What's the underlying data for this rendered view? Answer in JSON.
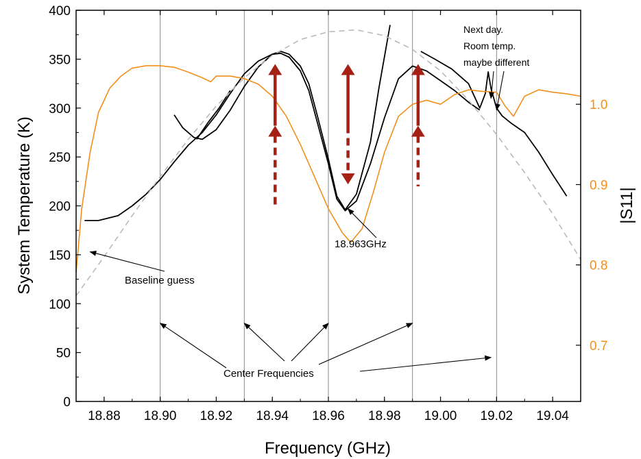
{
  "chart_data": {
    "type": "line",
    "xlabel": "Frequency (GHz)",
    "ylabel": "System Temperature (K)",
    "y2label": "|S11|",
    "xlim": [
      18.87,
      19.05
    ],
    "ylim": [
      0,
      400
    ],
    "y2lim": [
      0.63,
      1.117
    ],
    "x_ticks": [
      18.88,
      18.9,
      18.92,
      18.94,
      18.96,
      18.98,
      19.0,
      19.02,
      19.04
    ],
    "x_tick_labels": [
      "18.88",
      "18.90",
      "18.92",
      "18.94",
      "18.96",
      "18.98",
      "19.00",
      "19.02",
      "19.04"
    ],
    "y_ticks": [
      0,
      50,
      100,
      150,
      200,
      250,
      300,
      350,
      400
    ],
    "y_tick_labels": [
      "0",
      "50",
      "100",
      "150",
      "200",
      "250",
      "300",
      "350",
      "400"
    ],
    "y2_ticks": [
      0.7,
      0.8,
      0.9,
      1.0
    ],
    "y2_tick_labels": [
      "0.7",
      "0.8",
      "0.9",
      "1.0"
    ],
    "grid": false,
    "vertical_lines": [
      18.9,
      18.93,
      18.96,
      18.99,
      19.02
    ],
    "colors": {
      "temperature": "#000000",
      "s11": "#f28e1c",
      "baseline": "#b8b8b8",
      "arrows": "#a52015",
      "vlines": "#888888"
    },
    "series": [
      {
        "axis": "left",
        "style": "solid",
        "color": "#000000",
        "x": [
          18.873,
          18.878,
          18.885,
          18.89,
          18.895,
          18.9,
          18.905,
          18.91,
          18.915,
          18.92,
          18.925,
          18.93,
          18.935,
          18.94,
          18.943,
          18.946,
          18.95,
          18.953,
          18.956,
          18.96,
          18.963,
          18.966,
          18.97,
          18.975,
          18.98,
          18.985,
          18.99,
          18.995,
          19.0,
          19.005,
          19.01,
          19.014
        ],
        "y": [
          185,
          185,
          190,
          200,
          212,
          227,
          245,
          262,
          275,
          293,
          315,
          335,
          348,
          355,
          356,
          352,
          338,
          318,
          286,
          243,
          207,
          195,
          205,
          243,
          290,
          330,
          343,
          338,
          328,
          318,
          306,
          298
        ]
      },
      {
        "axis": "left",
        "style": "solid",
        "color": "#000000",
        "x": [
          18.905,
          18.908,
          18.912,
          18.915,
          18.92,
          18.925,
          18.93,
          18.935,
          18.94,
          18.943,
          18.946,
          18.95,
          18.953,
          18.956,
          18.96,
          18.963,
          18.966,
          18.97,
          18.975,
          18.978,
          18.982
        ],
        "y": [
          293,
          280,
          270,
          268,
          278,
          298,
          322,
          342,
          355,
          358,
          355,
          343,
          325,
          293,
          248,
          210,
          196,
          212,
          265,
          320,
          385
        ]
      },
      {
        "axis": "left",
        "style": "solid",
        "color": "#000000",
        "x": [
          18.913,
          18.917,
          18.921,
          18.925
        ],
        "y": [
          268,
          285,
          300,
          318
        ]
      },
      {
        "axis": "left",
        "style": "solid",
        "color": "#000000",
        "x": [
          18.993,
          18.998,
          19.004,
          19.01,
          19.014,
          19.016,
          19.017,
          19.018,
          19.02,
          19.022,
          19.025,
          19.03,
          19.035,
          19.04,
          19.045
        ],
        "y": [
          358,
          350,
          340,
          325,
          300,
          315,
          337,
          320,
          300,
          292,
          285,
          275,
          255,
          232,
          210
        ]
      },
      {
        "axis": "left",
        "style": "dashed",
        "color": "#b8b8b8",
        "x": [
          18.87,
          18.88,
          18.89,
          18.9,
          18.91,
          18.92,
          18.93,
          18.94,
          18.95,
          18.96,
          18.97,
          18.98,
          18.99,
          19.0,
          19.01,
          19.02,
          19.03,
          19.04,
          19.05
        ],
        "y": [
          108,
          148,
          190,
          230,
          268,
          302,
          331,
          354,
          370,
          378,
          380,
          374,
          360,
          338,
          308,
          273,
          234,
          192,
          145
        ]
      },
      {
        "axis": "right",
        "style": "solid",
        "color": "#f28e1c",
        "x": [
          18.87,
          18.872,
          18.875,
          18.878,
          18.882,
          18.886,
          18.89,
          18.895,
          18.9,
          18.905,
          18.91,
          18.915,
          18.918,
          18.92,
          18.925,
          18.93,
          18.935,
          18.94,
          18.945,
          18.95,
          18.955,
          18.96,
          18.965,
          18.968,
          18.972,
          18.976,
          18.98,
          18.985,
          18.99,
          18.995,
          19.0,
          19.005,
          19.01,
          19.015,
          19.02,
          19.023,
          19.026,
          19.03,
          19.035,
          19.04,
          19.045,
          19.05
        ],
        "y": [
          0.79,
          0.87,
          0.94,
          0.99,
          1.02,
          1.035,
          1.045,
          1.048,
          1.048,
          1.046,
          1.04,
          1.033,
          1.028,
          1.035,
          1.035,
          1.032,
          1.025,
          1.01,
          0.985,
          0.95,
          0.91,
          0.87,
          0.84,
          0.828,
          0.845,
          0.89,
          0.94,
          0.985,
          1.0,
          1.005,
          1.0,
          1.012,
          1.018,
          1.016,
          1.015,
          0.998,
          0.985,
          1.01,
          1.018,
          1.015,
          1.013,
          1.01
        ]
      }
    ],
    "annotations": [
      {
        "text": "Baseline guess",
        "arrow_to": [
          18.875,
          153
        ]
      },
      {
        "text": "18.963GHz",
        "arrow_to": [
          18.967,
          197
        ]
      },
      {
        "text": "Center Frequencies",
        "arrow_to": [
          [
            18.9,
            80
          ],
          [
            18.93,
            80
          ],
          [
            18.96,
            80
          ],
          [
            18.99,
            80
          ],
          [
            19.018,
            45
          ]
        ]
      },
      {
        "lines": [
          "Next day.",
          "Room temp.",
          "maybe different"
        ],
        "arrow_to": [
          [
            19.018,
            310
          ],
          [
            19.02,
            298
          ]
        ]
      }
    ],
    "red_arrows": [
      {
        "x": 18.941,
        "dashed": [
          200,
          282
        ],
        "solid": [
          282,
          345
        ],
        "direction": "up"
      },
      {
        "x": 18.967,
        "dashed": [
          222,
          282
        ],
        "solid": [
          282,
          345
        ],
        "direction": "up",
        "dashed_direction": "down"
      },
      {
        "x": 18.992,
        "dashed": [
          220,
          282
        ],
        "solid": [
          282,
          345
        ],
        "direction": "up"
      }
    ]
  }
}
